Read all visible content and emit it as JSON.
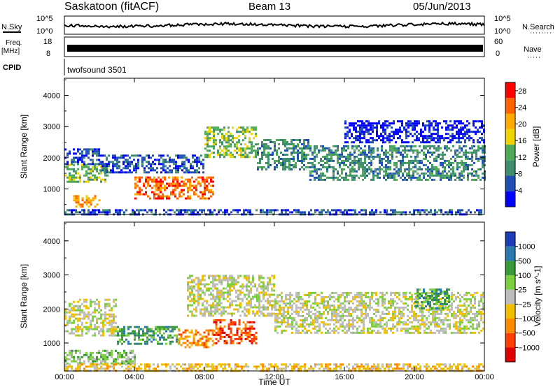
{
  "header": {
    "station": "Saskatoon (fitACF)",
    "beam": "Beam 13",
    "date": "05/Jun/2013"
  },
  "strips": {
    "nsky_label": "N.Sky",
    "nsearch_label": "N.Search",
    "nsky_ticks": [
      "10^5",
      "10^0"
    ],
    "nsearch_ticks": [
      "10^5",
      "10^0"
    ],
    "freq_label_line1": "Freq.",
    "freq_label_line2": "[MHz]",
    "freq_ticks": [
      "18",
      "8"
    ],
    "nave_label": "Nave",
    "nave_ticks": [
      "60",
      "0"
    ],
    "cpid_label": "CPID",
    "cpid_value": "twofsound 3501"
  },
  "colors": {
    "power": [
      "#0000ff",
      "#1f4fb4",
      "#3f8f6f",
      "#4faa57",
      "#f0d400",
      "#ffaa00",
      "#ff6400",
      "#ff0000"
    ],
    "velocity": [
      "#1c3cb8",
      "#2a7ab0",
      "#3a9a3a",
      "#7cd040",
      "#bdbdbd",
      "#f0c000",
      "#ff8c00",
      "#ff4000",
      "#e00000"
    ]
  },
  "chart_data": [
    {
      "type": "heatmap",
      "name": "power",
      "xlabel": "",
      "ylabel": "Slant Range [km]",
      "x_ticks": [
        "00:00",
        "04:00",
        "08:00",
        "12:00",
        "16:00",
        "20:00",
        "00:00"
      ],
      "y_ticks": [
        1000,
        2000,
        3000,
        4000
      ],
      "xlim_hours": [
        0,
        24
      ],
      "ylim_km": [
        180,
        4550
      ],
      "colorbar_label": "Power [dB]",
      "colorbar_ticks": [
        4,
        8,
        12,
        16,
        20,
        24,
        28
      ],
      "colorbar_range": [
        0,
        30
      ],
      "bands": [
        {
          "t0": 0.0,
          "t1": 2.5,
          "r0": 1200,
          "r1": 1800,
          "level": 3
        },
        {
          "t0": 0.0,
          "t1": 2.0,
          "r0": 1800,
          "r1": 2300,
          "level": 1
        },
        {
          "t0": 0.5,
          "t1": 2.0,
          "r0": 400,
          "r1": 800,
          "level": 5
        },
        {
          "t0": 2.0,
          "t1": 8.0,
          "r0": 1500,
          "r1": 2100,
          "level": 1
        },
        {
          "t0": 4.0,
          "t1": 8.5,
          "r0": 700,
          "r1": 1400,
          "level": 6
        },
        {
          "t0": 8.0,
          "t1": 11.0,
          "r0": 2000,
          "r1": 3000,
          "level": 3
        },
        {
          "t0": 11.0,
          "t1": 14.0,
          "r0": 1600,
          "r1": 2600,
          "level": 2
        },
        {
          "t0": 14.0,
          "t1": 24.0,
          "r0": 1300,
          "r1": 2400,
          "level": 2
        },
        {
          "t0": 16.0,
          "t1": 24.0,
          "r0": 2500,
          "r1": 3200,
          "level": 0
        },
        {
          "t0": 0.0,
          "t1": 24.0,
          "r0": 200,
          "r1": 350,
          "level": 1
        }
      ]
    },
    {
      "type": "heatmap",
      "name": "velocity",
      "xlabel": "Time UT",
      "ylabel": "Slant Range [km]",
      "x_ticks": [
        "00:00",
        "04:00",
        "08:00",
        "12:00",
        "16:00",
        "20:00",
        "00:00"
      ],
      "y_ticks": [
        1000,
        2000,
        3000,
        4000
      ],
      "xlim_hours": [
        0,
        24
      ],
      "ylim_km": [
        180,
        4550
      ],
      "colorbar_label": "Velocity [m s^-1]",
      "colorbar_ticks": [
        "1000",
        "500",
        "100",
        "25",
        "−25",
        "−100",
        "−500",
        "−1000"
      ],
      "bands": [
        {
          "t0": 0.0,
          "t1": 3.0,
          "r0": 1200,
          "r1": 2300,
          "level": 4
        },
        {
          "t0": 0.0,
          "t1": 4.0,
          "r0": 400,
          "r1": 800,
          "level": 3
        },
        {
          "t0": 3.0,
          "t1": 6.5,
          "r0": 1000,
          "r1": 1500,
          "level": 2
        },
        {
          "t0": 6.5,
          "t1": 8.5,
          "r0": 900,
          "r1": 1400,
          "level": 6
        },
        {
          "t0": 8.5,
          "t1": 11.0,
          "r0": 1000,
          "r1": 1700,
          "level": 7
        },
        {
          "t0": 7.0,
          "t1": 12.0,
          "r0": 1800,
          "r1": 3000,
          "level": 4
        },
        {
          "t0": 12.0,
          "t1": 24.0,
          "r0": 1300,
          "r1": 2500,
          "level": 4
        },
        {
          "t0": 20.0,
          "t1": 22.0,
          "r0": 2000,
          "r1": 2600,
          "level": 2
        },
        {
          "t0": 0.0,
          "t1": 24.0,
          "r0": 200,
          "r1": 400,
          "level": 5
        }
      ]
    }
  ]
}
